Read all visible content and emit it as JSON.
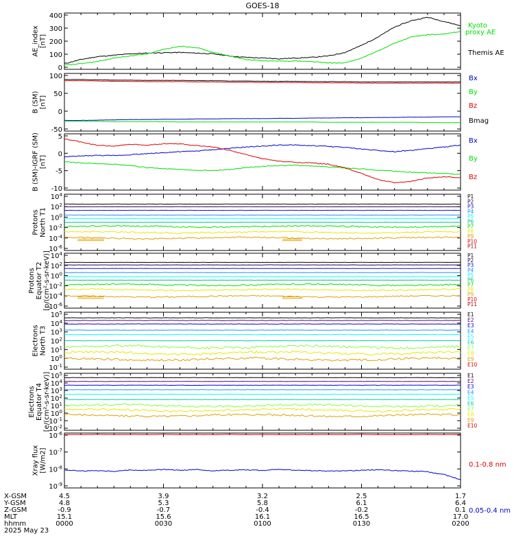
{
  "title": "GOES-18",
  "date_label": "2025 May 23",
  "colors": {
    "black": "#000000",
    "blue": "#0000d0",
    "green": "#00e000",
    "red": "#e00000",
    "P": [
      "#000000",
      "#2a0050",
      "#1010c8",
      "#1e90ff",
      "#00ffff",
      "#00c080",
      "#00e000",
      "#e8e800",
      "#e0a000",
      "#e00000",
      "#b00000"
    ],
    "E": [
      "#000000",
      "#5a007a",
      "#0000d0",
      "#1e90ff",
      "#00ffff",
      "#00d0a0",
      "#80ff40",
      "#e8e800",
      "#e0a000",
      "#e00000"
    ]
  },
  "panels": [
    {
      "id": "ae",
      "ylabel": [
        "AE_index",
        "[nT]"
      ],
      "yticks": [
        "400",
        "300",
        "200",
        "100",
        "0"
      ],
      "legend": [
        {
          "text": "Kyoto",
          "color": "#00e000"
        },
        {
          "text": "proxy AE",
          "color": "#00e000"
        },
        {
          "text": "Themis AE",
          "color": "#000000"
        }
      ]
    },
    {
      "id": "bsm",
      "ylabel": [
        "B (SM)",
        "[nT]"
      ],
      "yticks": [
        "100",
        "50",
        "0",
        "-50"
      ],
      "legend": [
        {
          "text": "Bx",
          "color": "#0000d0"
        },
        {
          "text": "By",
          "color": "#00e000"
        },
        {
          "text": "Bz",
          "color": "#e00000"
        },
        {
          "text": "Bmag",
          "color": "#000000"
        }
      ]
    },
    {
      "id": "bigrf",
      "ylabel": [
        "B (SM)-IGRF (SM)",
        "[nT]"
      ],
      "yticks": [
        "5",
        "0",
        "-5",
        "-10"
      ],
      "legend": [
        {
          "text": "Bx",
          "color": "#0000d0"
        },
        {
          "text": "By",
          "color": "#00e000"
        },
        {
          "text": "Bz",
          "color": "#e00000"
        }
      ]
    },
    {
      "id": "prot_t1",
      "ylabel": [
        "Protons",
        "North T1"
      ],
      "yticks": [
        "10^4",
        "10^2",
        "10^0",
        "10^-2",
        "10^-4",
        "10^-6"
      ],
      "channels": [
        "P1",
        "P2",
        "P3",
        "P4",
        "P5",
        "P6",
        "P7",
        "P8",
        "P9",
        "P10",
        "P11"
      ]
    },
    {
      "id": "prot_t2",
      "ylabel": [
        "Protons",
        "Equator T2",
        "[p/(cm²-s-sr-keV)]"
      ],
      "yticks": [
        "10^4",
        "10^2",
        "10^0",
        "10^-2",
        "10^-4",
        "10^-6"
      ],
      "channels": [
        "P1",
        "P2",
        "P3",
        "P4",
        "P5",
        "P6",
        "P7",
        "P8",
        "P9",
        "P10",
        "P11"
      ]
    },
    {
      "id": "elec_t3",
      "ylabel": [
        "Electrons",
        "North T3"
      ],
      "yticks": [
        "10^5",
        "10^4",
        "10^3",
        "10^2",
        "10^1",
        "10^0",
        "10^-1"
      ],
      "channels": [
        "E1",
        "E2",
        "E3",
        "E4",
        "E5",
        "E6",
        "E7",
        "E8",
        "E9",
        "E10"
      ]
    },
    {
      "id": "elec_t4",
      "ylabel": [
        "Electrons",
        "Equator T4",
        "[e/(cm²-s-sr-keV)]"
      ],
      "yticks": [
        "10^5",
        "10^4",
        "10^3",
        "10^2",
        "10^1",
        "10^0",
        "10^-1",
        "10^-2"
      ],
      "channels": [
        "E1",
        "E2",
        "E3",
        "E4",
        "E5",
        "E6",
        "E7",
        "E8",
        "E9",
        "E10"
      ]
    },
    {
      "id": "xray",
      "ylabel": [
        "Xray flux",
        "[W/m2]"
      ],
      "yticks": [
        "10^-6",
        "10^-7",
        "10^-8",
        "10^-9"
      ],
      "legend": [
        {
          "text": "0.1-0.8 nm",
          "color": "#e00000"
        },
        {
          "text": "0.05-0.4 nm",
          "color": "#0000d0"
        }
      ]
    }
  ],
  "xaxis": {
    "rows": [
      {
        "label": "X-GSM",
        "values": [
          "4.5",
          "3.9",
          "3.2",
          "2.5",
          "1.7"
        ]
      },
      {
        "label": "Y-GSM",
        "values": [
          "4.8",
          "5.3",
          "5.8",
          "6.1",
          "6.4"
        ]
      },
      {
        "label": "Z-GSM",
        "values": [
          "-0.9",
          "-0.7",
          "-0.4",
          "-0.2",
          "0.1"
        ]
      },
      {
        "label": "MLT",
        "values": [
          "15.1",
          "15.6",
          "16.1",
          "16.5",
          "17.0"
        ]
      },
      {
        "label": "hhmm",
        "values": [
          "0000",
          "0030",
          "0100",
          "0130",
          "0200"
        ]
      }
    ]
  },
  "chart_data": {
    "type": "line",
    "title": "GOES-18",
    "x_unit": "minutes since 0000 UT",
    "x": [
      0,
      5,
      10,
      15,
      20,
      25,
      30,
      35,
      40,
      45,
      50,
      55,
      60,
      65,
      70,
      75,
      80,
      85,
      90,
      95,
      100,
      105,
      110,
      115,
      120
    ],
    "ae_index": {
      "ylim": [
        0,
        400
      ],
      "series": [
        {
          "name": "Themis AE",
          "values": [
            40,
            70,
            90,
            100,
            110,
            115,
            118,
            120,
            115,
            110,
            95,
            85,
            80,
            75,
            80,
            85,
            95,
            120,
            170,
            230,
            300,
            345,
            370,
            340,
            310
          ]
        },
        {
          "name": "Kyoto proxy AE",
          "values": [
            30,
            40,
            55,
            80,
            95,
            110,
            140,
            165,
            155,
            120,
            95,
            70,
            60,
            58,
            60,
            55,
            45,
            45,
            80,
            130,
            185,
            230,
            245,
            250,
            270
          ]
        }
      ]
    },
    "b_sm": {
      "ylim": [
        -60,
        130
      ],
      "series": [
        {
          "name": "Bx",
          "values": [
            -25,
            -25,
            -24,
            -23,
            -22,
            -22,
            -21,
            -21,
            -20,
            -20,
            -19,
            -19,
            -19,
            -18,
            -18,
            -17,
            -17,
            -16,
            -16,
            -15,
            -15,
            -14,
            -14,
            -13,
            -13
          ]
        },
        {
          "name": "By",
          "values": [
            -28,
            -28,
            -28,
            -29,
            -29,
            -29,
            -29,
            -30,
            -30,
            -30,
            -30,
            -30,
            -30,
            -30,
            -30,
            -30,
            -31,
            -31,
            -31,
            -31,
            -31,
            -31,
            -32,
            -32,
            -32
          ]
        },
        {
          "name": "Bz",
          "values": [
            106,
            106,
            105,
            104,
            104,
            103,
            103,
            103,
            102,
            102,
            101,
            101,
            100,
            100,
            100,
            99,
            99,
            99,
            98,
            98,
            98,
            98,
            98,
            98,
            98
          ]
        },
        {
          "name": "Bmag",
          "values": [
            110,
            110,
            109,
            108,
            108,
            107,
            107,
            107,
            106,
            106,
            105,
            105,
            104,
            104,
            104,
            103,
            103,
            103,
            102,
            102,
            102,
            102,
            102,
            102,
            102
          ]
        }
      ]
    },
    "b_minus_igrf": {
      "ylim": [
        -11,
        6
      ],
      "series": [
        {
          "name": "Bx",
          "values": [
            -1,
            -0.7,
            -0.5,
            -0.6,
            -0.3,
            0,
            0.3,
            0.6,
            0.8,
            1.2,
            1.6,
            2,
            2.3,
            2.6,
            2.6,
            2.4,
            2.2,
            1.9,
            1.4,
            1,
            0.6,
            1,
            1.5,
            2,
            2.6
          ]
        },
        {
          "name": "By",
          "values": [
            -2.4,
            -2.8,
            -3,
            -3.2,
            -3.6,
            -4.2,
            -4.5,
            -4.8,
            -5,
            -5.1,
            -4.8,
            -4.2,
            -3.8,
            -3.6,
            -3.5,
            -3.7,
            -4,
            -4.3,
            -4.6,
            -5,
            -5.3,
            -5.6,
            -5.8,
            -6,
            -6.3
          ]
        },
        {
          "name": "Bz",
          "values": [
            4.5,
            3.5,
            2.5,
            2.3,
            2.8,
            2.6,
            3,
            3,
            2.4,
            2,
            1,
            -0.3,
            -1.5,
            -2.3,
            -2.6,
            -2.8,
            -3.2,
            -4.3,
            -6,
            -7.8,
            -8.8,
            -8.4,
            -7.3,
            -7,
            -7.2
          ]
        }
      ]
    },
    "protons_north_t1": {
      "log_range": [
        -6,
        4
      ],
      "channel_levels_log10": [
        2.5,
        2.0,
        1.3,
        0.4,
        -0.3,
        -1.0,
        -1.8,
        -2.9,
        -4.0,
        -6.2,
        -6.5
      ]
    },
    "protons_equator_t2": {
      "log_range": [
        -6,
        4
      ],
      "channel_levels_log10": [
        2.6,
        2.1,
        1.4,
        0.6,
        -0.2,
        -0.9,
        -1.8,
        -2.8,
        -4.1,
        -6.2,
        -6.5
      ]
    },
    "electrons_north_t3": {
      "log_range": [
        -1,
        5
      ],
      "channel_levels_log10": [
        4.6,
        4.3,
        3.9,
        3.2,
        2.7,
        2.0,
        1.3,
        0.6,
        -0.1,
        -0.5
      ]
    },
    "electrons_equator_t4": {
      "log_range": [
        -2,
        5
      ],
      "channel_levels_log10": [
        4.7,
        4.2,
        3.7,
        3.1,
        2.5,
        1.8,
        1.0,
        0.4,
        -0.3,
        -1.0
      ]
    },
    "xray": {
      "log_range": [
        -9.3,
        -6
      ],
      "series": [
        {
          "name": "0.1-0.8 nm",
          "values": [
            -6.09,
            -6.1,
            -6.08,
            -6.1,
            -6.09,
            -6.1,
            -6.08,
            -6.1,
            -6.09,
            -6.1,
            -6.08,
            -6.1,
            -6.09,
            -6.1,
            -6.1,
            -6.1,
            -6.09,
            -6.1,
            -6.08,
            -6.1,
            -6.1,
            -6.1,
            -6.09,
            -6.1,
            -6.08
          ]
        },
        {
          "name": "0.05-0.4 nm",
          "values": [
            -8.22,
            -8.28,
            -8.26,
            -8.3,
            -8.22,
            -8.25,
            -8.19,
            -8.24,
            -8.2,
            -8.27,
            -8.23,
            -8.21,
            -8.25,
            -8.18,
            -8.23,
            -8.26,
            -8.29,
            -8.27,
            -8.24,
            -8.2,
            -8.26,
            -8.29,
            -8.33,
            -8.5,
            -8.8
          ]
        }
      ]
    }
  }
}
